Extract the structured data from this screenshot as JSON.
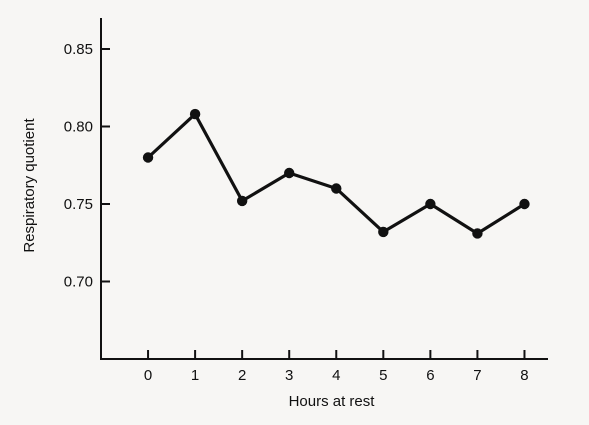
{
  "chart_data": {
    "type": "line",
    "title": "",
    "xlabel": "Hours at rest",
    "ylabel": "Respiratory quotient",
    "x": [
      0,
      1,
      2,
      3,
      4,
      5,
      6,
      7,
      8
    ],
    "series": [
      {
        "values": [
          0.78,
          0.808,
          0.752,
          0.77,
          0.76,
          0.732,
          0.75,
          0.731,
          0.75
        ]
      }
    ],
    "xticks": [
      "0",
      "1",
      "2",
      "3",
      "4",
      "5",
      "6",
      "7",
      "8"
    ],
    "yticks": [
      "0.70",
      "0.75",
      "0.80",
      "0.85"
    ],
    "xlim": [
      -1,
      8.5
    ],
    "ylim": [
      0.65,
      0.87
    ],
    "grid": false,
    "legend": "none",
    "colors": {
      "line": "#111111",
      "marker": "#111111",
      "axis": "#111111",
      "background": "#f7f6f4"
    }
  }
}
